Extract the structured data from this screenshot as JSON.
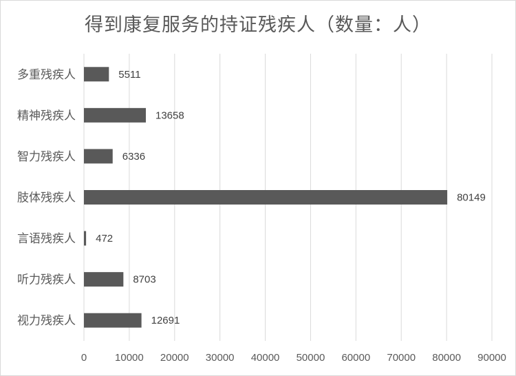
{
  "chart_data": {
    "type": "bar",
    "orientation": "horizontal",
    "title": "得到康复服务的持证残疾人（数量：人）",
    "categories": [
      "多重残疾人",
      "精神残疾人",
      "智力残疾人",
      "肢体残疾人",
      "言语残疾人",
      "听力残疾人",
      "视力残疾人"
    ],
    "values": [
      5511,
      13658,
      6336,
      80149,
      472,
      8703,
      12691
    ],
    "xlim": [
      0,
      90000
    ],
    "xticks": [
      0,
      10000,
      20000,
      30000,
      40000,
      50000,
      60000,
      70000,
      80000,
      90000
    ],
    "xlabel": "",
    "ylabel": "",
    "grid": "vertical",
    "legend": "none",
    "data_labels": true,
    "colors": {
      "bar": "#595959",
      "grid": "#d9d9d9",
      "text": "#595959"
    }
  }
}
